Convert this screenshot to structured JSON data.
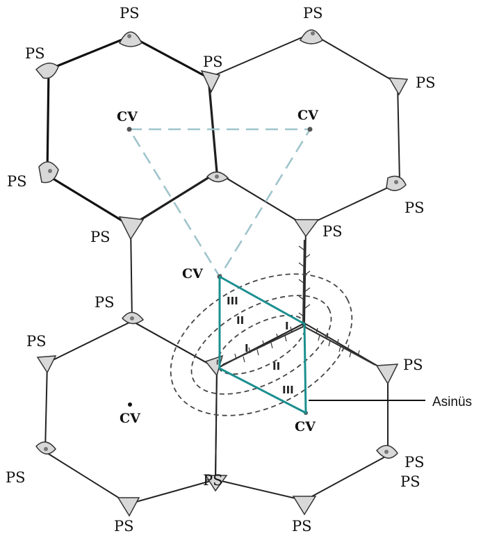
{
  "labels": {
    "portal_space": "PS",
    "central_vein": "CV",
    "acinus": "Asinüs",
    "zone_1": "I",
    "zone_2": "II",
    "zone_3": "III"
  },
  "colors": {
    "acinus_outline": "#1c8f8f",
    "classic_lobule_triangle": "#9fc4cc",
    "lobule_border": "#222222"
  }
}
